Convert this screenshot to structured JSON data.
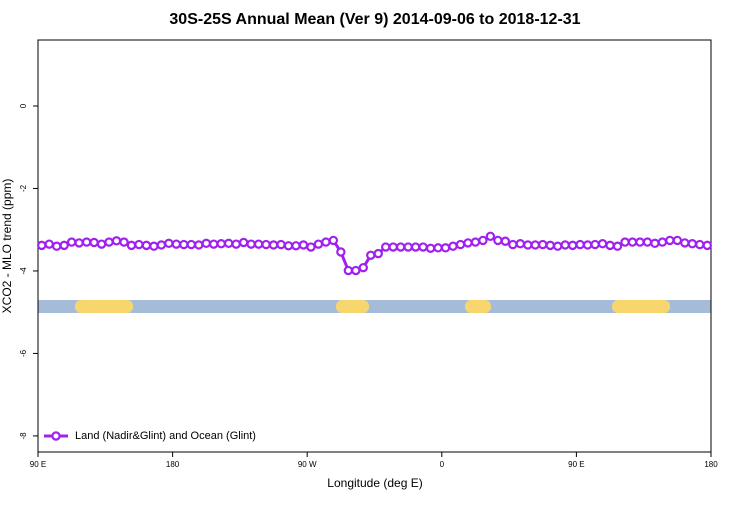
{
  "chart_data": {
    "type": "line",
    "title": "30S-25S Annual Mean (Ver 9)   2014-09-06 to 2018-12-31",
    "x_label": "Longitude (deg E)",
    "y_label": "XCO2 - MLO trend (ppm)",
    "xlim": [
      90,
      540
    ],
    "xticks": [
      {
        "value": 90,
        "label": "90 E"
      },
      180,
      {
        "value": 270,
        "label": "90 W"
      },
      {
        "value": 360,
        "label": "0"
      },
      {
        "value": 450,
        "label": "90 E"
      },
      {
        "value": 540,
        "label": "180"
      }
    ],
    "ylim": [
      -8.39,
      1.6
    ],
    "yticks": [
      0,
      -2,
      -4,
      -6,
      -8
    ],
    "legend": "bottom-left",
    "x": [
      92.5,
      97.5,
      102.5,
      107.5,
      112.5,
      117.5,
      122.5,
      127.5,
      132.5,
      137.5,
      142.5,
      147.5,
      152.5,
      157.5,
      162.5,
      167.5,
      172.5,
      177.5,
      182.5,
      187.5,
      192.5,
      197.5,
      202.5,
      207.5,
      212.5,
      217.5,
      222.5,
      227.5,
      232.5,
      237.5,
      242.5,
      247.5,
      252.5,
      257.5,
      262.5,
      267.5,
      272.5,
      277.5,
      282.5,
      287.5,
      292.5,
      297.5,
      302.5,
      307.5,
      312.5,
      317.5,
      322.5,
      327.5,
      332.5,
      337.5,
      342.5,
      347.5,
      352.5,
      357.5,
      362.5,
      367.5,
      372.5,
      377.5,
      382.5,
      387.5,
      392.5,
      397.5,
      402.5,
      407.5,
      412.5,
      417.5,
      422.5,
      427.5,
      432.5,
      437.5,
      442.5,
      447.5,
      452.5,
      457.5,
      462.5,
      467.5,
      472.5,
      477.5,
      482.5,
      487.5,
      492.5,
      497.5,
      502.5,
      507.5,
      512.5,
      517.5,
      522.5,
      527.5,
      532.5,
      537.5
    ],
    "series": [
      {
        "name": "Land (Nadir&Glint) and Ocean (Glint)",
        "color": "#a020f0",
        "values": [
          -3.38,
          -3.35,
          -3.4,
          -3.38,
          -3.3,
          -3.32,
          -3.3,
          -3.31,
          -3.35,
          -3.3,
          -3.27,
          -3.3,
          -3.38,
          -3.36,
          -3.38,
          -3.4,
          -3.37,
          -3.33,
          -3.35,
          -3.36,
          -3.36,
          -3.37,
          -3.33,
          -3.35,
          -3.34,
          -3.33,
          -3.35,
          -3.31,
          -3.35,
          -3.35,
          -3.36,
          -3.37,
          -3.36,
          -3.39,
          -3.39,
          -3.37,
          -3.42,
          -3.35,
          -3.3,
          -3.26,
          -3.54,
          -3.99,
          -3.99,
          -3.92,
          -3.62,
          -3.58,
          -3.42,
          -3.42,
          -3.42,
          -3.42,
          -3.42,
          -3.42,
          -3.45,
          -3.44,
          -3.44,
          -3.4,
          -3.36,
          -3.32,
          -3.3,
          -3.26,
          -3.16,
          -3.26,
          -3.28,
          -3.36,
          -3.34,
          -3.37,
          -3.37,
          -3.36,
          -3.38,
          -3.4,
          -3.37,
          -3.38,
          -3.36,
          -3.37,
          -3.36,
          -3.34,
          -3.38,
          -3.4,
          -3.3,
          -3.3,
          -3.3,
          -3.3,
          -3.33,
          -3.3,
          -3.26,
          -3.26,
          -3.32,
          -3.34,
          -3.36,
          -3.38
        ]
      }
    ]
  }
}
